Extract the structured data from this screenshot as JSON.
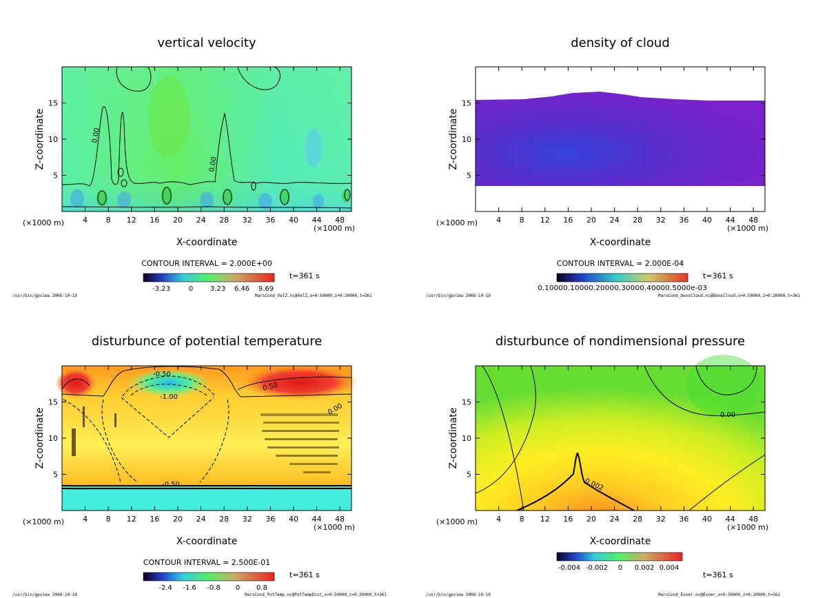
{
  "chart_data": [
    {
      "type": "heatmap",
      "title": "vertical velocity",
      "xlabel": "X-coordinate",
      "ylabel": "Z-coordinate",
      "x_unit": "(×1000 m)",
      "x_ticks": [
        4,
        8,
        12,
        16,
        20,
        24,
        28,
        32,
        36,
        40,
        44,
        48
      ],
      "y_ticks": [
        5,
        10,
        15
      ],
      "xlim": [
        0,
        50
      ],
      "ylim": [
        0,
        20
      ],
      "contour_interval": "CONTOUR INTERVAL = 2.000E+00",
      "colorbar_ticks": [
        "-3.23",
        "0",
        "3.23",
        "6.46",
        "9.69"
      ],
      "time_label": "t=361 s",
      "contour_labels": [
        "0.00",
        "0.00"
      ],
      "footer_left": "/usr/bin/gpview  2008-10-19",
      "footer_right": "MarsCond_VelZ.nc@VelZ,x=0:50000,z=0:20000,t=361"
    },
    {
      "type": "heatmap",
      "title": "density of cloud",
      "xlabel": "X-coordinate",
      "ylabel": "Z-coordinate",
      "x_unit": "(×1000 m)",
      "x_ticks": [
        4,
        8,
        12,
        16,
        20,
        24,
        28,
        32,
        36,
        40,
        44,
        48
      ],
      "y_ticks": [
        5,
        10,
        15
      ],
      "xlim": [
        0,
        50
      ],
      "ylim": [
        0,
        20
      ],
      "contour_interval": "CONTOUR INTERVAL = 2.000E-04",
      "colorbar_ticks": [
        "0.100E-03",
        "0.200E-03",
        "0.300E-03",
        "0.400E-03",
        "0.500E-03"
      ],
      "colorbar_tick_text": "0.10000.10000.20000.30000.40000.5000e-03",
      "time_label": "t=361 s",
      "footer_left": "/usr/bin/gpview  2008-10-19",
      "footer_right": "MarsCond_DensCloud.nc@DensCloud,x=0:50000,z=0:20000,t=361"
    },
    {
      "type": "heatmap",
      "title": "disturbunce of potential temperature",
      "xlabel": "X-coordinate",
      "ylabel": "Z-coordinate",
      "x_unit": "(×1000 m)",
      "x_ticks": [
        4,
        8,
        12,
        16,
        20,
        24,
        28,
        32,
        36,
        40,
        44,
        48
      ],
      "y_ticks": [
        5,
        10,
        15
      ],
      "xlim": [
        0,
        50
      ],
      "ylim": [
        0,
        20
      ],
      "contour_interval": "CONTOUR INTERVAL = 2.500E-01",
      "colorbar_ticks": [
        "-2.4",
        "-1.6",
        "-0.8",
        "0",
        "0.8"
      ],
      "time_label": "t=361 s",
      "contour_labels": [
        "-0.50",
        "-1.00",
        "0.50",
        "0.00",
        "-0.50"
      ],
      "footer_left": "/usr/bin/gpview  2008-10-19",
      "footer_right": "MarsCond_PotTemp.nc@PotTempDist,x=0:50000,z=0:20000,t=361"
    },
    {
      "type": "heatmap",
      "title": "disturbunce of nondimensional pressure",
      "xlabel": "X-coordinate",
      "ylabel": "Z-coordinate",
      "x_unit": "(×1000 m)",
      "x_ticks": [
        4,
        8,
        12,
        16,
        20,
        24,
        28,
        32,
        36,
        40,
        44,
        48
      ],
      "y_ticks": [
        5,
        10,
        15
      ],
      "xlim": [
        0,
        50
      ],
      "ylim": [
        0,
        20
      ],
      "colorbar_ticks": [
        "-0.004",
        "-0.002",
        "0",
        "0.002",
        "0.004"
      ],
      "time_label": "t=361 s",
      "contour_labels": [
        "0.00",
        "0.002"
      ],
      "footer_left": "/usr/bin/gpview  2008-10-19",
      "footer_right": "MarsCond_Exner.nc@Exner,x=0:50000,z=0:20000,t=361"
    }
  ],
  "colors": {
    "field_green": "#66ee88",
    "field_cyan": "#44eedd",
    "cloud_purple": "#7a22cc",
    "warm_red": "#e83020",
    "warm_yellow": "#ffee22"
  }
}
